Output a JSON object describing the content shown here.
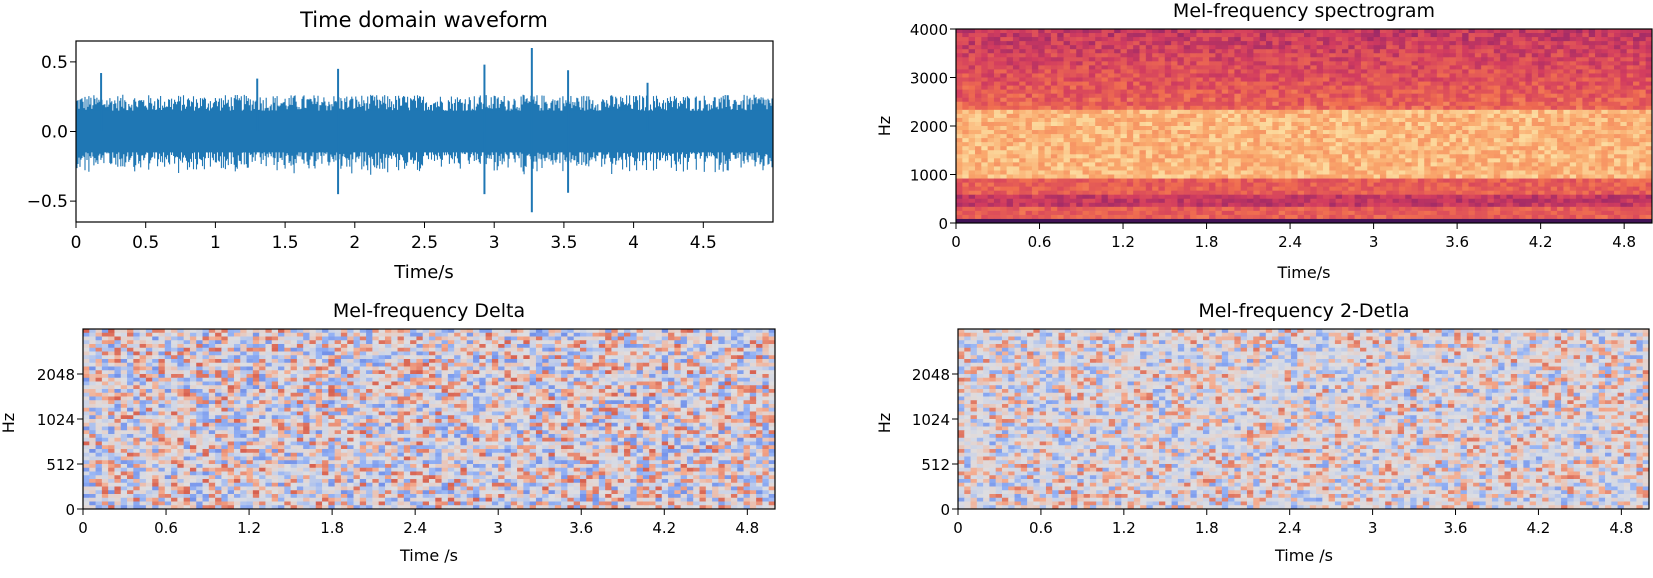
{
  "chart_data": [
    {
      "type": "line",
      "title": "Time domain waveform",
      "xlabel": "Time/s",
      "ylabel": "",
      "xlim": [
        0,
        5
      ],
      "ylim": [
        -0.65,
        0.65
      ],
      "xticks": [
        "0",
        "0.5",
        "1",
        "1.5",
        "2",
        "2.5",
        "3",
        "3.5",
        "4",
        "4.5"
      ],
      "xtick_values": [
        0,
        0.5,
        1,
        1.5,
        2,
        2.5,
        3,
        3.5,
        4,
        4.5
      ],
      "yticks": [
        "0.5",
        "0.0",
        "−0.5"
      ],
      "ytick_values": [
        0.5,
        0.0,
        -0.5
      ],
      "color": "#1f77b4",
      "envelope_amplitude": 0.22,
      "peaks": [
        {
          "x": 0.18,
          "y": 0.42
        },
        {
          "x": 1.3,
          "y": 0.38
        },
        {
          "x": 1.88,
          "y": 0.45
        },
        {
          "x": 2.93,
          "y": 0.48
        },
        {
          "x": 3.27,
          "y": 0.6
        },
        {
          "x": 3.53,
          "y": 0.44
        },
        {
          "x": 4.1,
          "y": 0.35
        }
      ],
      "troughs": [
        {
          "x": 1.88,
          "y": -0.45
        },
        {
          "x": 2.93,
          "y": -0.45
        },
        {
          "x": 3.27,
          "y": -0.58
        },
        {
          "x": 3.53,
          "y": -0.44
        }
      ]
    },
    {
      "type": "heatmap",
      "title": "Mel-frequency spectrogram",
      "xlabel": "Time/s",
      "ylabel": "Hz",
      "xlim": [
        0,
        5
      ],
      "ylim": [
        0,
        4000
      ],
      "xticks": [
        "0",
        "0.6",
        "1.2",
        "1.8",
        "2.4",
        "3",
        "3.6",
        "4.2",
        "4.8"
      ],
      "xtick_values": [
        0,
        0.6,
        1.2,
        1.8,
        2.4,
        3,
        3.6,
        4.2,
        4.8
      ],
      "yticks": [
        "4000",
        "3000",
        "2000",
        "1000",
        "0"
      ],
      "ytick_values": [
        4000,
        3000,
        2000,
        1000,
        0
      ],
      "colormap": "magma"
    },
    {
      "type": "heatmap",
      "title": "Mel-frequency Delta",
      "xlabel": "Time /s",
      "ylabel": "Hz",
      "xlim": [
        0,
        5
      ],
      "ylim": [
        0,
        4096
      ],
      "xticks": [
        "0",
        "0.6",
        "1.2",
        "1.8",
        "2.4",
        "3",
        "3.6",
        "4.2",
        "4.8"
      ],
      "xtick_values": [
        0,
        0.6,
        1.2,
        1.8,
        2.4,
        3,
        3.6,
        4.2,
        4.8
      ],
      "yticks": [
        "2048",
        "1024",
        "512",
        "0"
      ],
      "ytick_frac": [
        0.75,
        0.5,
        0.25,
        0
      ],
      "colormap": "coolwarm"
    },
    {
      "type": "heatmap",
      "title": "Mel-frequency 2-Detla",
      "xlabel": "Time /s",
      "ylabel": "Hz",
      "xlim": [
        0,
        5
      ],
      "ylim": [
        0,
        4096
      ],
      "xticks": [
        "0",
        "0.6",
        "1.2",
        "1.8",
        "2.4",
        "3",
        "3.6",
        "4.2",
        "4.8"
      ],
      "xtick_values": [
        0,
        0.6,
        1.2,
        1.8,
        2.4,
        3,
        3.6,
        4.2,
        4.8
      ],
      "yticks": [
        "2048",
        "1024",
        "512",
        "0"
      ],
      "ytick_frac": [
        0.75,
        0.5,
        0.25,
        0
      ],
      "colormap": "coolwarm"
    }
  ]
}
